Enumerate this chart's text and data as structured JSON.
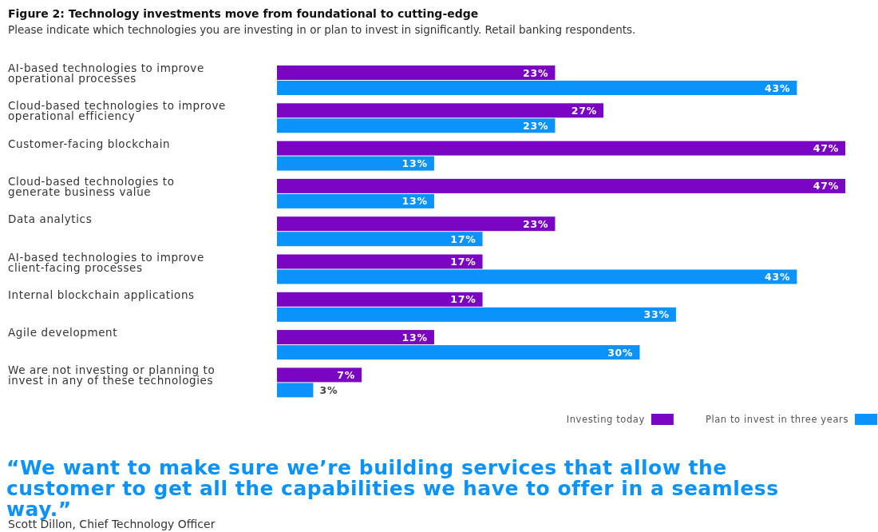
{
  "chart_data": {
    "type": "bar",
    "orientation": "horizontal",
    "title": "Figure 2: Technology investments move from foundational to cutting-edge",
    "subtitle": "Please indicate which technologies you are investing in or plan to invest in significantly. Retail banking respondents.",
    "categories": [
      "AI-based technologies to improve operational processes",
      "Cloud-based technologies to improve operational efficiency",
      "Customer-facing blockchain",
      "Cloud-based technologies to generate business value",
      "Data analytics",
      "AI-based technologies to improve client-facing processes",
      "Internal blockchain applications",
      "Agile development",
      "We are not investing or planning to invest in any of these technologies"
    ],
    "series": [
      {
        "name": "Investing today",
        "color": "#7a05c2",
        "values": [
          23,
          27,
          47,
          47,
          23,
          17,
          17,
          13,
          7
        ],
        "value_labels": [
          "23%",
          "27%",
          "47%",
          "47%",
          "23%",
          "17%",
          "17%",
          "13%",
          "7%"
        ]
      },
      {
        "name": "Plan to invest in three years",
        "color": "#0b93fb",
        "values": [
          43,
          23,
          13,
          13,
          17,
          43,
          33,
          30,
          3
        ],
        "value_labels": [
          "43%",
          "23%",
          "13%",
          "13%",
          "17%",
          "43%",
          "33%",
          "30%",
          "3%"
        ]
      }
    ],
    "legend": "bottom right",
    "annotations": [
      "“We want to make sure we’re building services that allow the customer to get all the capabilities we have to offer in a seamless way.”",
      "Scott Dillon, Chief Technology Officer"
    ]
  }
}
